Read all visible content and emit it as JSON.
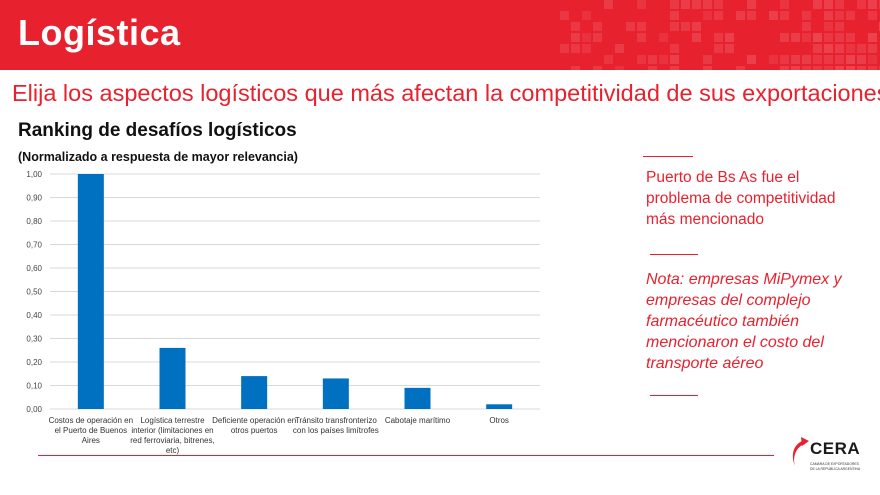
{
  "header": {
    "title": "Logística",
    "subtitle": "Elija los aspectos logísticos que más afectan la competitividad de sus exportaciones"
  },
  "chart_data": {
    "type": "bar",
    "title": "Ranking de desafíos logísticos",
    "subtitle": "(Normalizado a respuesta de mayor relevancia)",
    "categories": [
      [
        "Costos de operación en",
        "el Puerto de Buenos",
        "Aires"
      ],
      [
        "Logística terrestre",
        "interior (limitaciones en",
        "red ferroviaria, bitrenes,",
        "etc)"
      ],
      [
        "Deficiente operación en",
        "otros puertos"
      ],
      [
        "Tránsito transfronterizo",
        "con los países limítrofes"
      ],
      [
        "Cabotaje marítimo"
      ],
      [
        "Otros"
      ]
    ],
    "values": [
      1.0,
      0.26,
      0.14,
      0.13,
      0.09,
      0.02
    ],
    "ylim": [
      0,
      1
    ],
    "yticks": [
      "0,00",
      "0,10",
      "0,20",
      "0,30",
      "0,40",
      "0,50",
      "0,60",
      "0,70",
      "0,80",
      "0,90",
      "1,00"
    ],
    "grid": true,
    "bar_color": "#0070c0"
  },
  "notes": {
    "main": "Puerto de Bs As fue el problema de competitividad más mencionado",
    "italic": "Nota: empresas MiPymex y empresas del complejo farmacéutico también mencionaron el costo del transporte aéreo"
  },
  "logo": {
    "name": "CERA",
    "line1": "CAMARA DE EXPORTADORES",
    "line2": "DE LA REPUBLICA ARGENTINA",
    "color": "#e8212e"
  },
  "colors": {
    "accent": "#e8212e",
    "bar": "#0070c0"
  }
}
